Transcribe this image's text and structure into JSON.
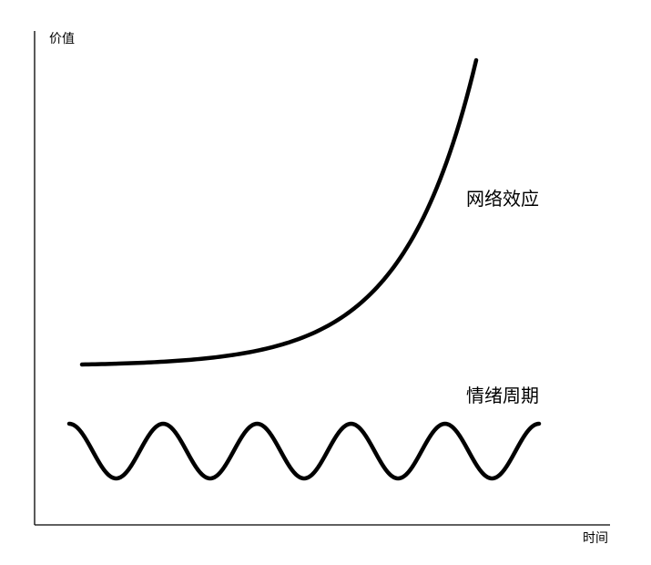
{
  "axes": {
    "y_label": "价值",
    "x_label": "时间"
  },
  "curves": {
    "network_effect": {
      "label": "网络效应",
      "shape": "exponential growth"
    },
    "sentiment_cycle": {
      "label": "情绪周期",
      "shape": "periodic oscillation",
      "peaks": 6,
      "troughs": 5
    }
  },
  "colors": {
    "stroke": "#000000",
    "background": "#ffffff"
  }
}
